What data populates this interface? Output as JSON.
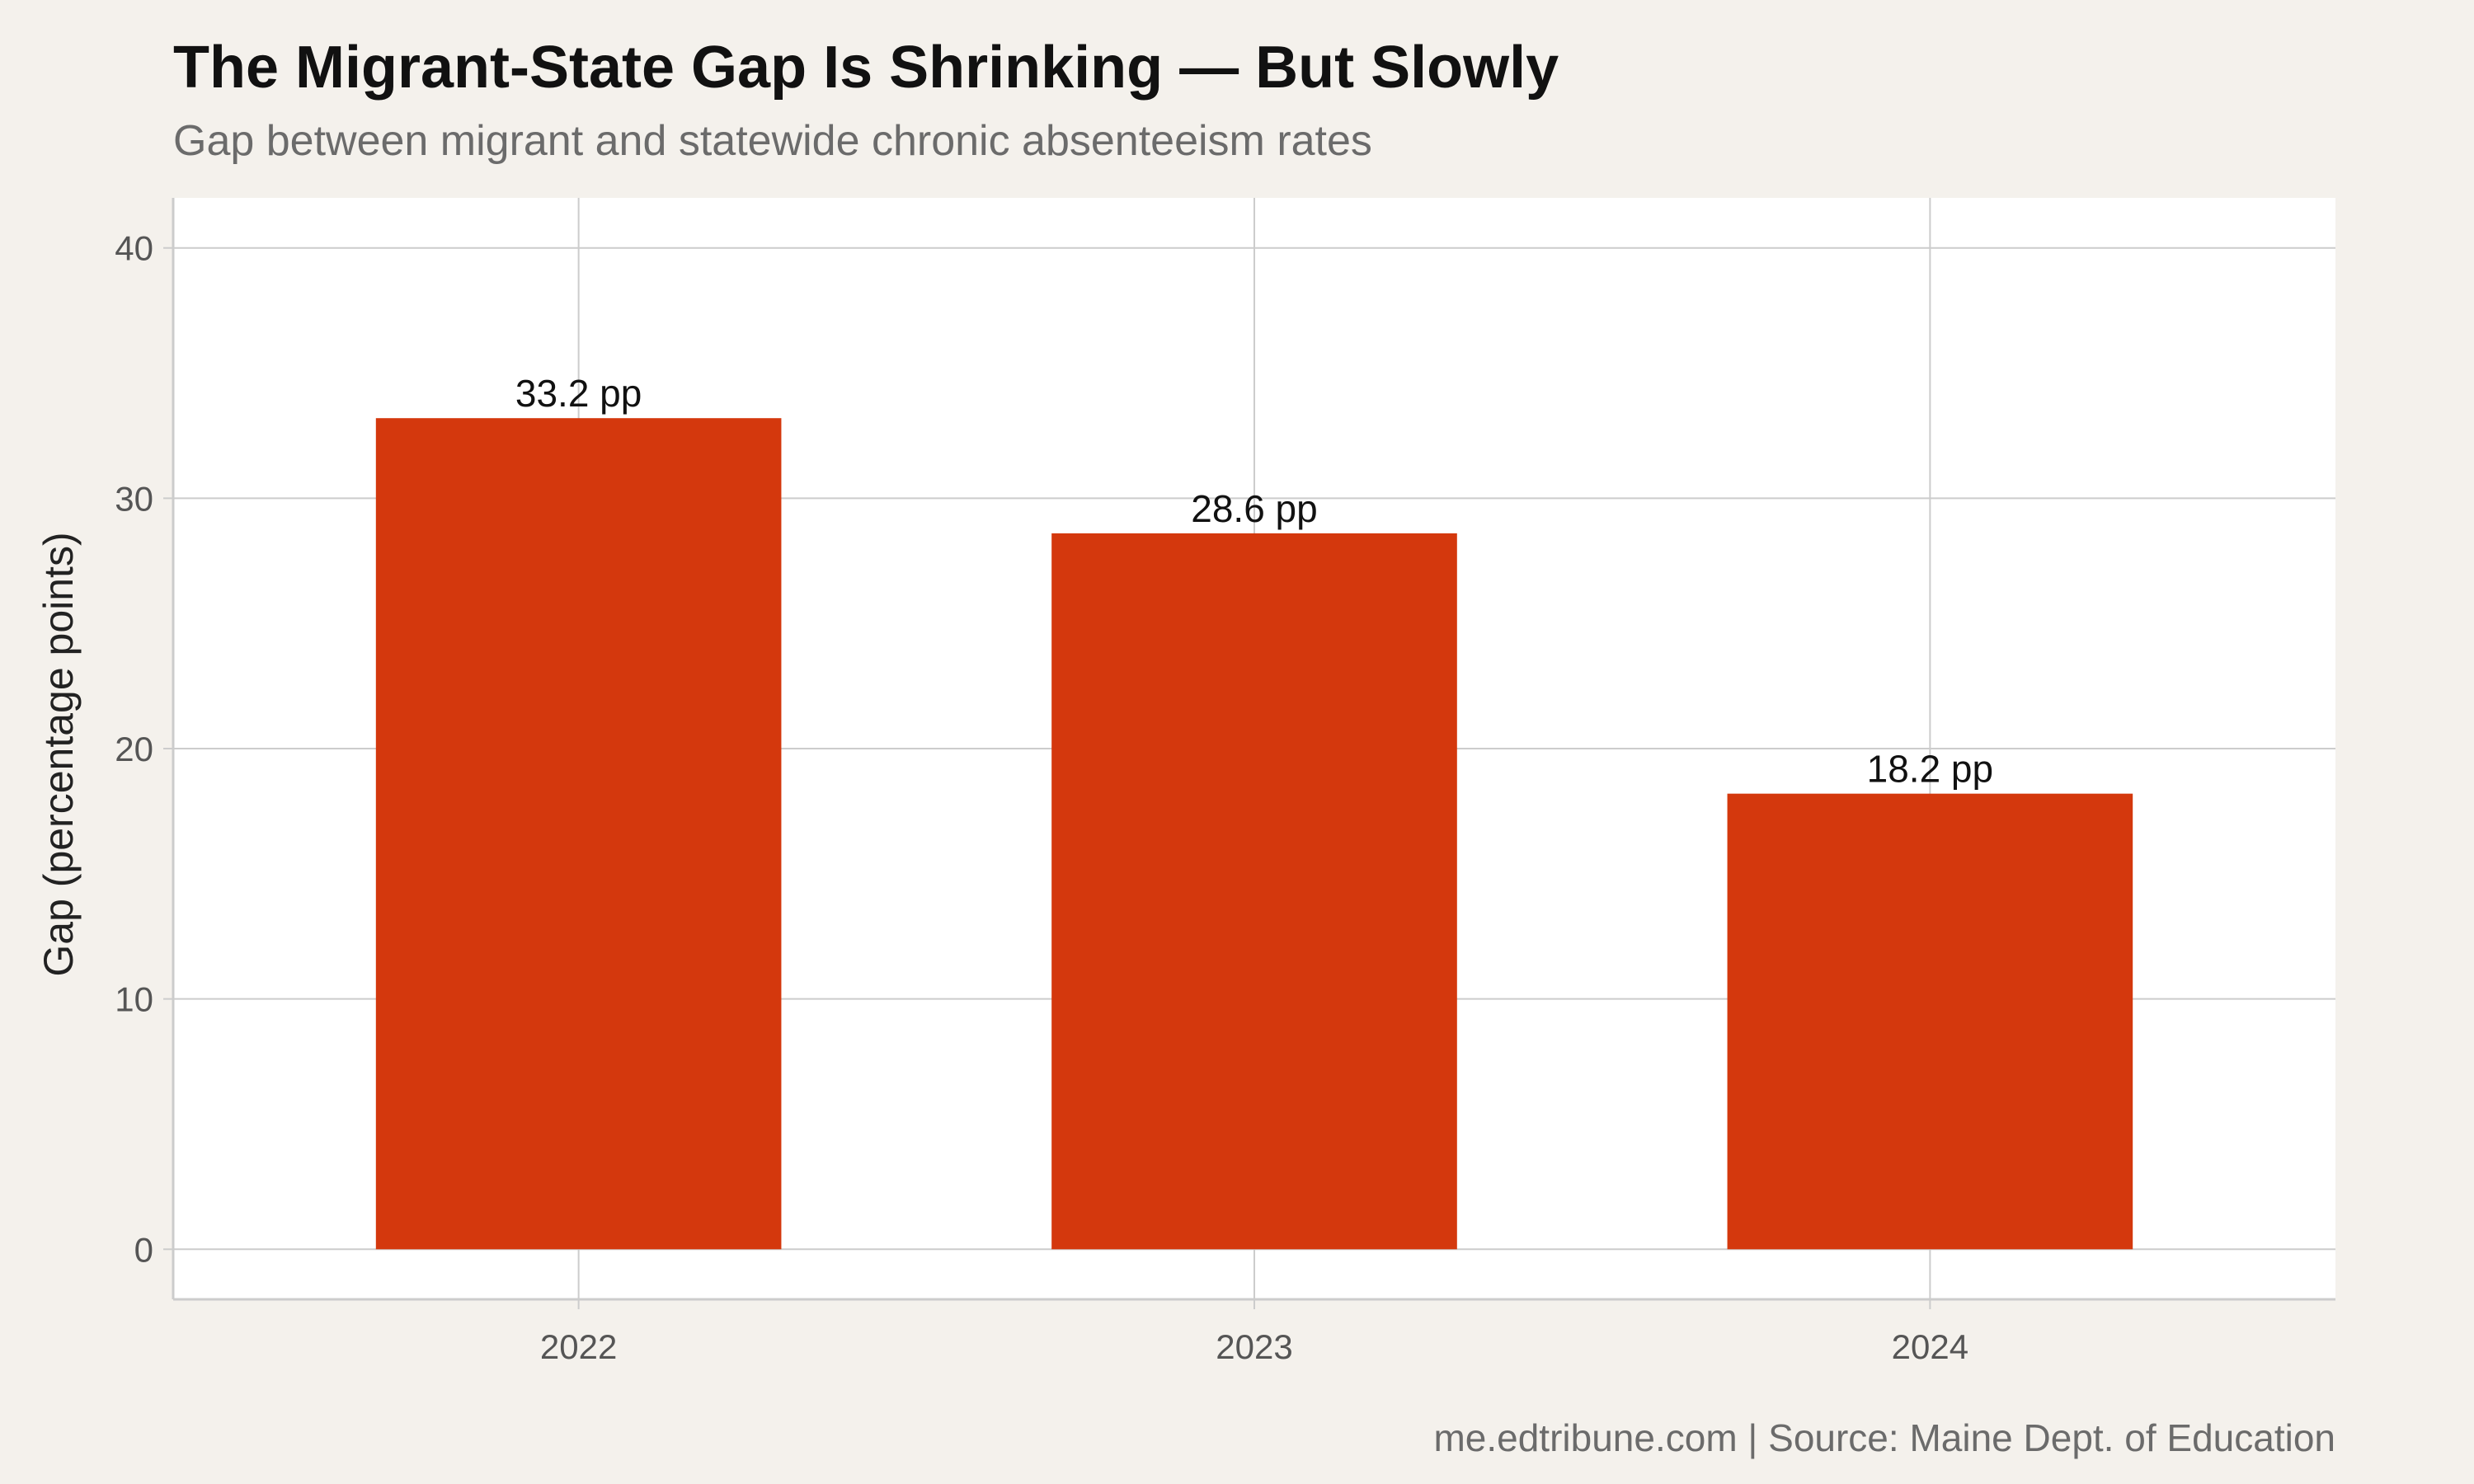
{
  "chart_data": {
    "type": "bar",
    "title": "The Migrant-State Gap Is Shrinking — But Slowly",
    "subtitle": "Gap between migrant and statewide chronic absenteeism rates",
    "caption": "me.edtribune.com | Source: Maine Dept. of Education",
    "xlabel": "",
    "ylabel": "Gap (percentage points)",
    "categories": [
      "2022",
      "2023",
      "2024"
    ],
    "values": [
      33.2,
      28.6,
      18.2
    ],
    "data_labels": [
      "33.2 pp",
      "28.6 pp",
      "18.2 pp"
    ],
    "ylim": [
      -2,
      42
    ],
    "yticks": [
      0,
      10,
      20,
      30,
      40
    ],
    "ytick_labels": [
      "0",
      "10",
      "20",
      "30",
      "40"
    ],
    "bar_color": "#D4380D",
    "grid": true,
    "legend": "none"
  },
  "colors": {
    "page_background": "#F4F1EC",
    "panel_background": "#FFFFFF",
    "gridline": "#CCCCCC",
    "bar": "#D4380D"
  }
}
